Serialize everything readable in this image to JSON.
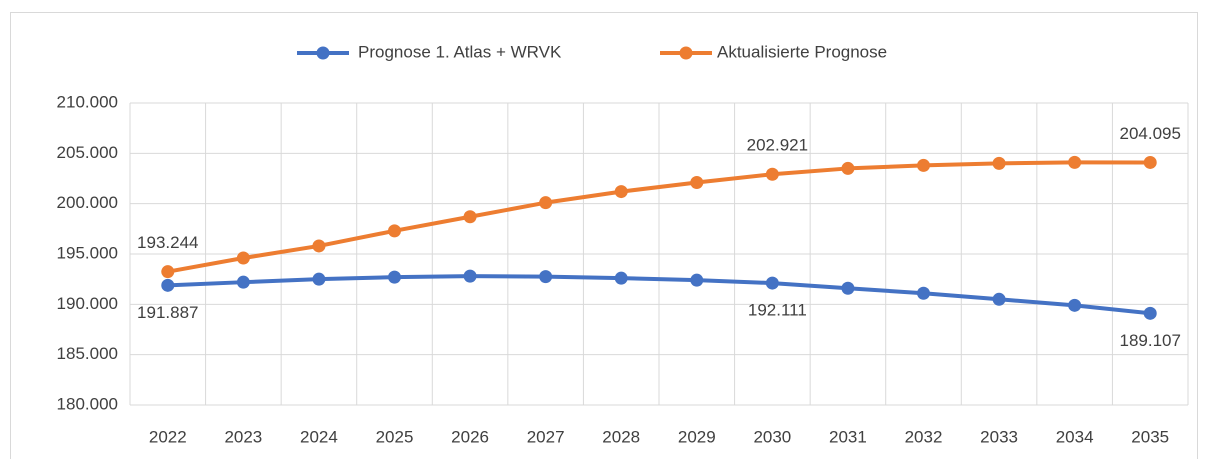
{
  "chart_data": {
    "type": "line",
    "categories": [
      "2022",
      "2023",
      "2024",
      "2025",
      "2026",
      "2027",
      "2028",
      "2029",
      "2030",
      "2031",
      "2032",
      "2033",
      "2034",
      "2035"
    ],
    "series": [
      {
        "name": "Prognose 1. Atlas + WRVK",
        "color": "#4472c4",
        "values": [
          191887,
          192200,
          192500,
          192700,
          192800,
          192750,
          192600,
          192400,
          192111,
          191600,
          191100,
          190500,
          189900,
          189107
        ],
        "value_labels": [
          "191.887",
          null,
          null,
          null,
          null,
          null,
          null,
          null,
          "192.111",
          null,
          null,
          null,
          null,
          "189.107"
        ]
      },
      {
        "name": "Aktualisierte Prognose",
        "color": "#ed7d31",
        "values": [
          193244,
          194600,
          195800,
          197300,
          198700,
          200100,
          201200,
          202100,
          202921,
          203500,
          203800,
          204000,
          204100,
          204095
        ],
        "value_labels": [
          "193.244",
          null,
          null,
          null,
          null,
          null,
          null,
          null,
          "202.921",
          null,
          null,
          null,
          null,
          "204.095"
        ]
      }
    ],
    "ylim": [
      180000,
      210000
    ],
    "yticks": [
      {
        "value": 180000,
        "label": "180.000"
      },
      {
        "value": 185000,
        "label": "185.000"
      },
      {
        "value": 190000,
        "label": "190.000"
      },
      {
        "value": 195000,
        "label": "195.000"
      },
      {
        "value": 200000,
        "label": "200.000"
      },
      {
        "value": 205000,
        "label": "205.000"
      },
      {
        "value": 210000,
        "label": "210.000"
      }
    ],
    "grid": true,
    "legend": "top"
  }
}
